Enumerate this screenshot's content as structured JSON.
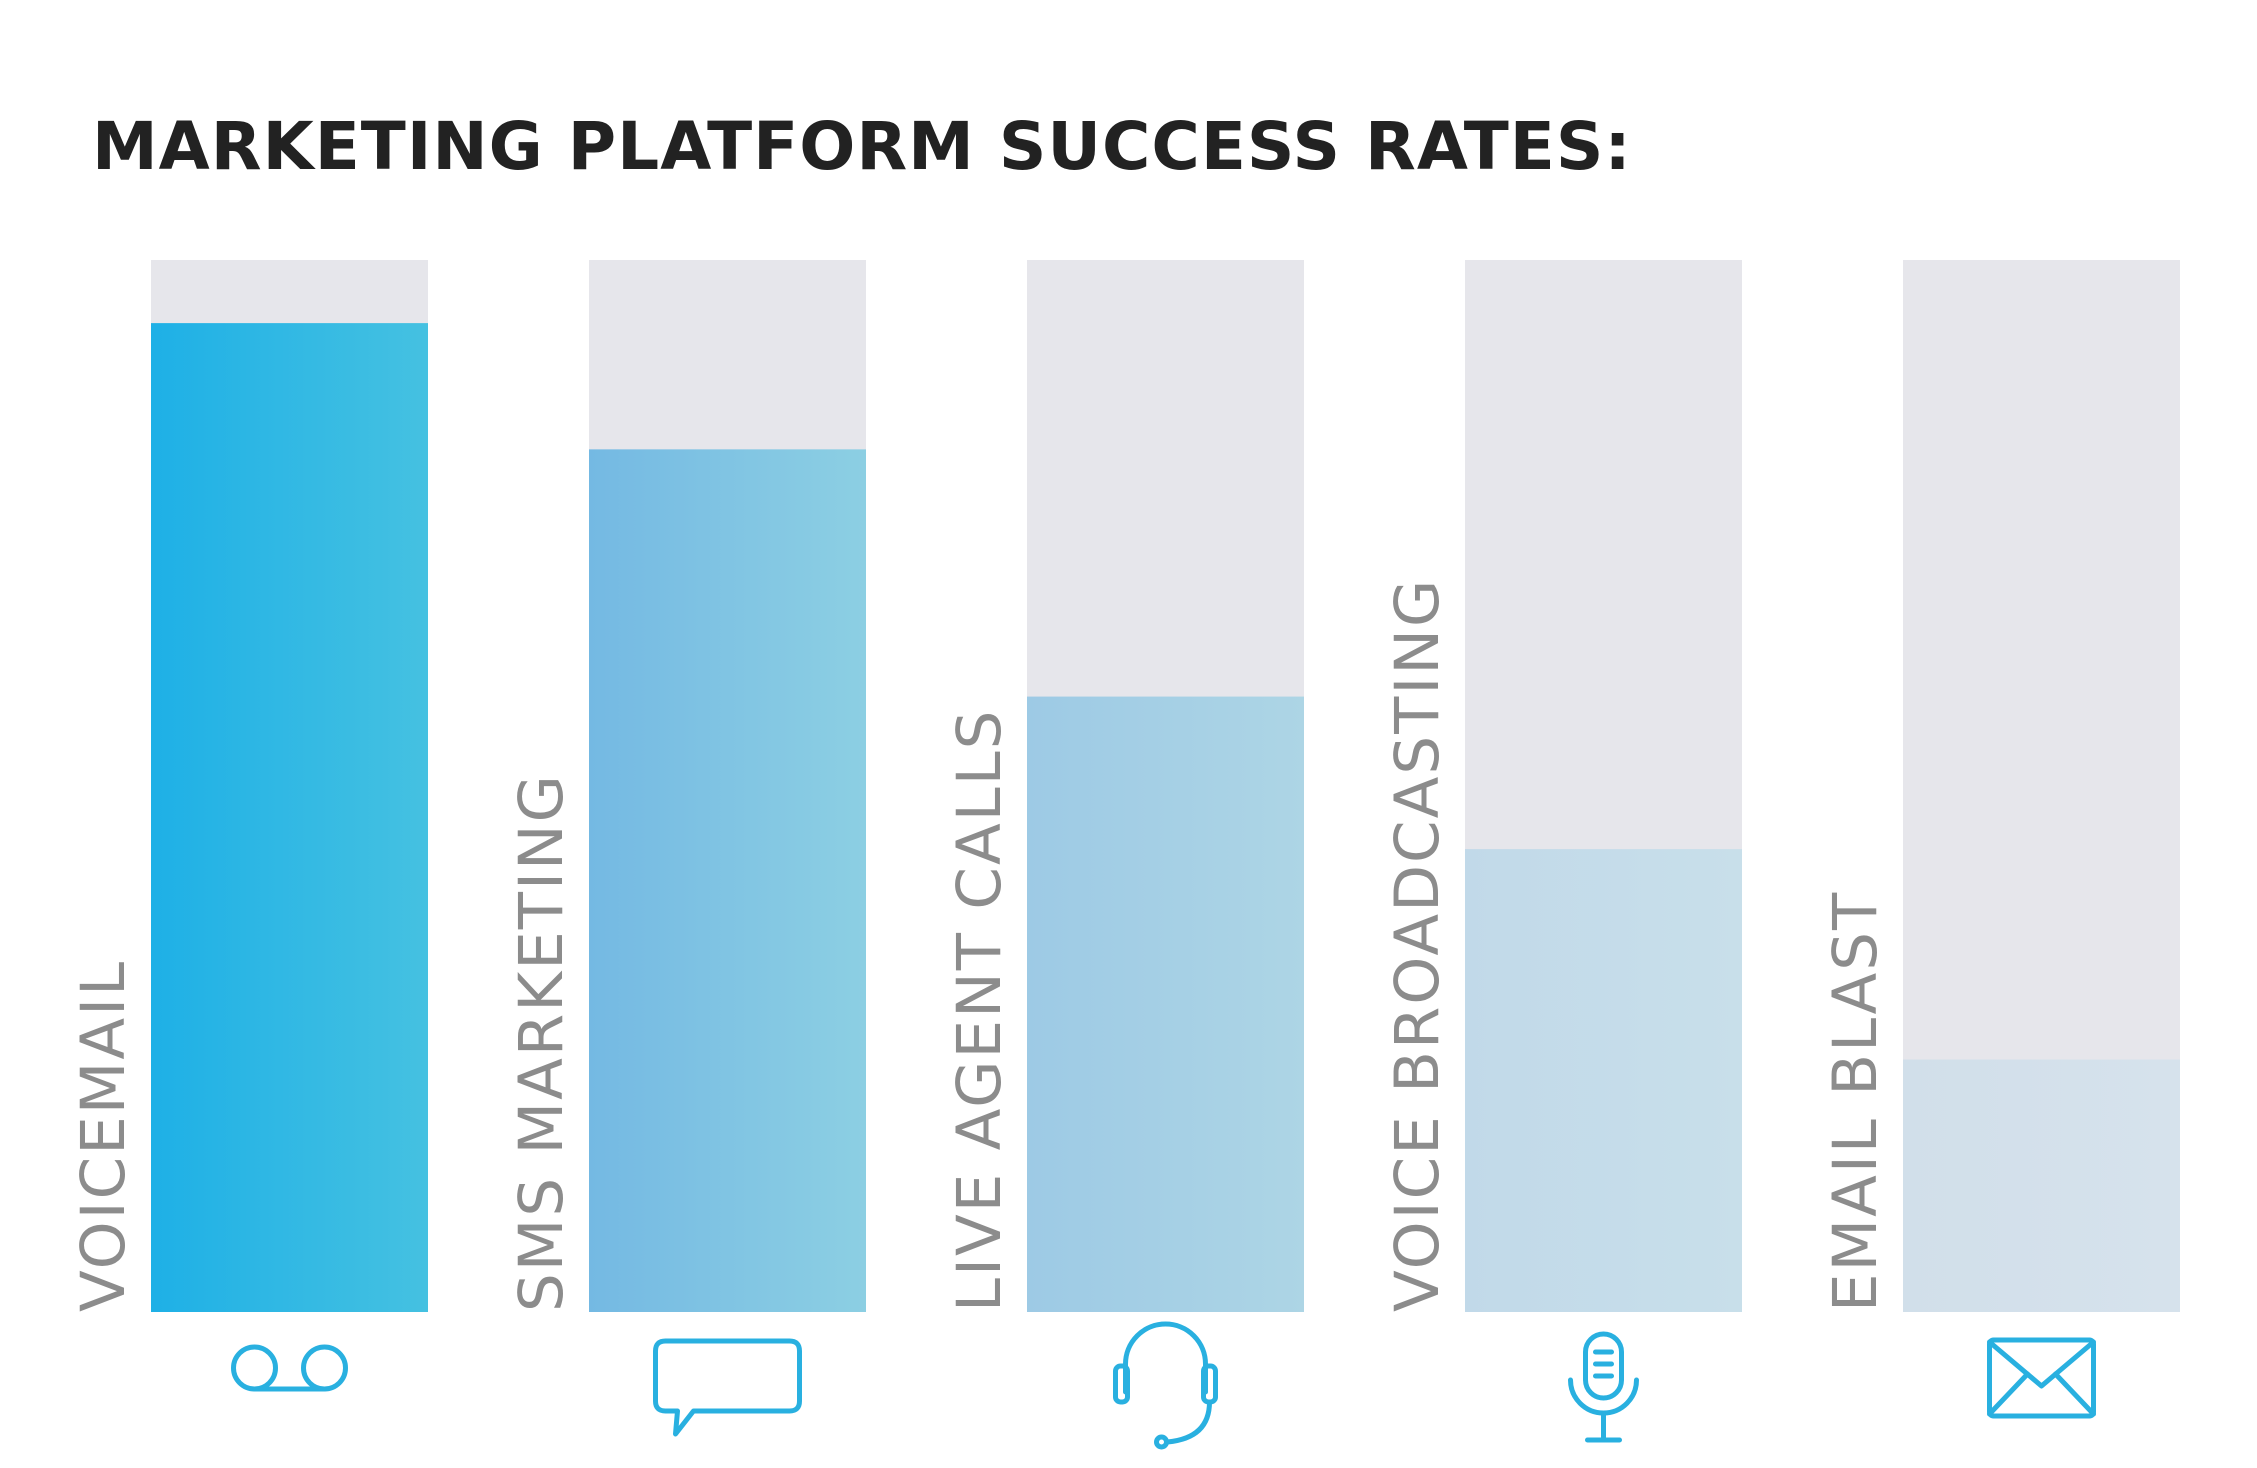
{
  "chart_data": {
    "type": "bar",
    "title": "MARKETING PLATFORM SUCCESS RATES:",
    "xlabel": "",
    "ylabel": "",
    "ylim": [
      0,
      100
    ],
    "grid": false,
    "legend": "none",
    "categories": [
      "VOICEMAIL",
      "SMS MARKETING",
      "LIVE AGENT CALLS",
      "VOICE BROADCASTING",
      "EMAIL BLAST"
    ],
    "values": [
      94,
      82,
      58.5,
      44,
      24
    ],
    "icons": [
      "voicemail-icon",
      "chat-bubble-icon",
      "headset-icon",
      "microphone-icon",
      "envelope-icon"
    ]
  },
  "colors": {
    "track": "#e6e6eb",
    "label": "#8c8c8c",
    "title": "#222222",
    "icon": "#29b0e0",
    "fills": [
      [
        "#1eb0e6",
        "#45c1e1"
      ],
      [
        "#74b9e3",
        "#8ccfe3"
      ],
      [
        "#9dcae5",
        "#add5e5"
      ],
      [
        "#c1d9e9",
        "#c8dfea"
      ],
      [
        "#d1dfea",
        "#d6e2ec"
      ]
    ]
  }
}
